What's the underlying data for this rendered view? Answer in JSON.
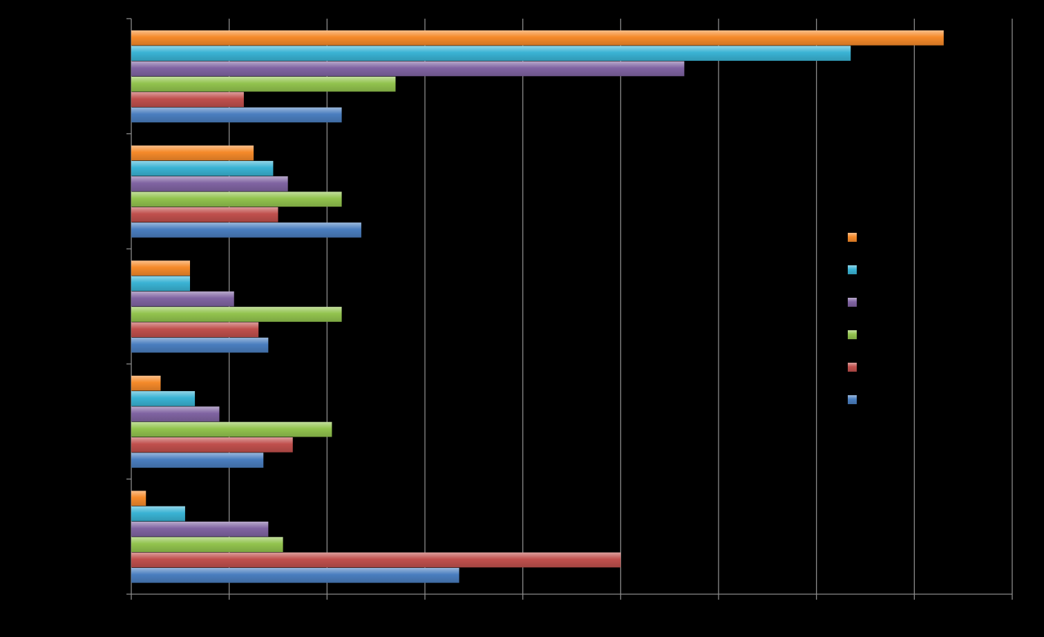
{
  "chart_data": {
    "type": "bar",
    "orientation": "horizontal",
    "title": "",
    "xlabel": "",
    "ylabel": "",
    "legend_position": "right",
    "grid": true,
    "xlim": [
      0,
      9
    ],
    "x_major_step": 1,
    "categories": [
      "",
      "",
      "",
      "",
      ""
    ],
    "series": [
      {
        "color": "#f58a2a",
        "values": [
          8.3,
          1.25,
          0.6,
          0.3,
          0.15
        ]
      },
      {
        "color": "#3ab3d4",
        "values": [
          7.35,
          1.45,
          0.6,
          0.65,
          0.55
        ]
      },
      {
        "color": "#8064a2",
        "values": [
          5.65,
          1.6,
          1.05,
          0.9,
          1.4
        ]
      },
      {
        "color": "#92c34e",
        "values": [
          2.7,
          2.15,
          2.15,
          2.05,
          1.55
        ]
      },
      {
        "color": "#c0504d",
        "values": [
          1.15,
          1.5,
          1.3,
          1.65,
          5.0
        ]
      },
      {
        "color": "#4a7ebf",
        "values": [
          2.15,
          2.35,
          1.4,
          1.35,
          3.35
        ]
      }
    ]
  }
}
